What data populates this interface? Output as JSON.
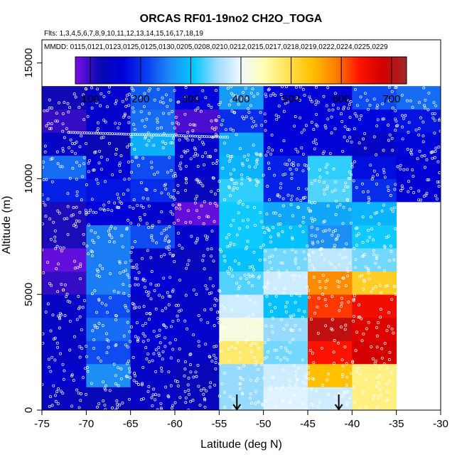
{
  "chart_data": {
    "type": "heatmap",
    "title": "ORCAS RF01-19no2 CH2O_TOGA",
    "flights_line": "Flts: 1,3,4,5,6,7,8,9,10,11,12,13,14,15,16,17,18,19",
    "dates_line": "MMDD: 0115,0121,0123,0125,0125,0130,0205,0208,0210,0212,0215,0217,0218,0219,0222,0224,0225,0229",
    "xlabel": "Latitude (deg N)",
    "ylabel": "Altitude (m)",
    "xlim": [
      -75,
      -30
    ],
    "ylim": [
      0,
      16000
    ],
    "x_ticks": [
      -75,
      -70,
      -65,
      -60,
      -55,
      -50,
      -45,
      -40,
      -35,
      -30
    ],
    "y_ticks": [
      0,
      5000,
      10000,
      15000
    ],
    "colorbar": {
      "range": [
        70,
        730
      ],
      "ticks": [
        100,
        200,
        300,
        400,
        500,
        600,
        700
      ],
      "colors": [
        "#7b0fe8",
        "#0a0ab0",
        "#0000d8",
        "#0a3cf0",
        "#1e8cf5",
        "#00c8ff",
        "#a0dcff",
        "#f0f8ff",
        "#ffffb0",
        "#ffe050",
        "#ffbf00",
        "#ff8000",
        "#ff1400",
        "#d20000",
        "#a02828"
      ]
    },
    "cells": {
      "lat_edges": [
        -75,
        -70,
        -65,
        -60,
        -55,
        -50,
        -45,
        -40,
        -35,
        -30
      ],
      "alt_step": 1000,
      "rows": [
        [
          130,
          125,
          140,
          130,
          350,
          390,
          380,
          470,
          null
        ],
        [
          150,
          260,
          140,
          125,
          350,
          380,
          540,
          470,
          null
        ],
        [
          140,
          220,
          150,
          140,
          480,
          340,
          640,
          680,
          null
        ],
        [
          140,
          240,
          160,
          150,
          420,
          350,
          700,
          670,
          null
        ],
        [
          140,
          220,
          140,
          140,
          380,
          300,
          620,
          650,
          null
        ],
        [
          100,
          250,
          160,
          145,
          330,
          380,
          580,
          520,
          null
        ],
        [
          80,
          250,
          140,
          130,
          300,
          340,
          370,
          340,
          null
        ],
        [
          110,
          250,
          220,
          150,
          310,
          300,
          260,
          310,
          null
        ],
        [
          110,
          165,
          150,
          80,
          310,
          280,
          280,
          290,
          null
        ],
        [
          190,
          180,
          200,
          130,
          320,
          190,
          330,
          200,
          160
        ],
        [
          240,
          160,
          220,
          145,
          290,
          190,
          320,
          175,
          160
        ],
        [
          140,
          120,
          285,
          150,
          280,
          165,
          160,
          140,
          170
        ],
        [
          100,
          150,
          240,
          90,
          200,
          160,
          165,
          170,
          180
        ],
        [
          115,
          150,
          230,
          170,
          270,
          170,
          160,
          220,
          240
        ],
        [
          null,
          null,
          null,
          null,
          null,
          null,
          null,
          null,
          null
        ],
        [
          null,
          null,
          null,
          null,
          null,
          null,
          null,
          null,
          null
        ]
      ]
    },
    "arrows_lat": [
      -53,
      -41.5
    ],
    "point_marker_color": "#ffffff"
  }
}
